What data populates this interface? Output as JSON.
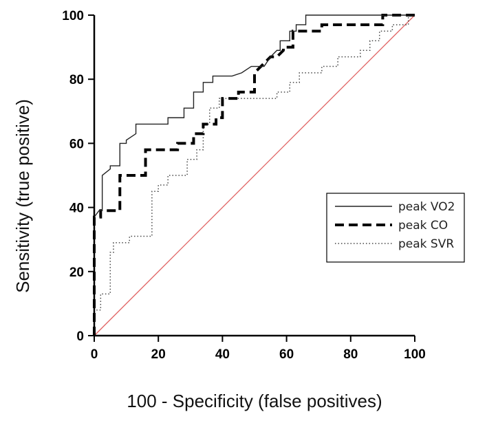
{
  "chart_data": {
    "type": "line",
    "title": "",
    "xlabel": "100 - Specificity (false positives)",
    "ylabel": "Sensitivity (true positive)",
    "xlim": [
      0,
      100
    ],
    "ylim": [
      0,
      100
    ],
    "x_ticks": [
      "0",
      "20",
      "40",
      "60",
      "80",
      "100"
    ],
    "y_ticks": [
      "0",
      "20",
      "40",
      "60",
      "80",
      "100"
    ],
    "grid": false,
    "legend_position": "right",
    "reference_line": {
      "x": [
        0,
        100
      ],
      "y": [
        0,
        100
      ],
      "color": "#e06060"
    },
    "series": [
      {
        "name": "peak VO2",
        "style": "solid",
        "color": "#222222",
        "x": [
          0,
          0,
          1.5,
          2.5,
          2.5,
          5,
          5,
          8,
          8,
          10,
          10,
          13,
          13,
          20,
          23,
          23,
          28,
          28,
          31,
          31,
          34,
          34,
          37,
          37,
          43,
          46,
          49,
          53,
          55,
          57,
          58,
          58,
          61,
          61,
          63,
          63,
          66,
          66,
          100
        ],
        "y": [
          0,
          37,
          39,
          39,
          50,
          52,
          53,
          53,
          60,
          60,
          61,
          63,
          66,
          66,
          66,
          68,
          68,
          71,
          71,
          76,
          76,
          79,
          79,
          81,
          81,
          82,
          84,
          84,
          87,
          89,
          89,
          92,
          92,
          95,
          95,
          97,
          97,
          100,
          100
        ]
      },
      {
        "name": "peak CO",
        "style": "dashed",
        "color": "#000000",
        "x": [
          0,
          0,
          2,
          2,
          8,
          8,
          16,
          16,
          26,
          26,
          31,
          31,
          34,
          34,
          38,
          38,
          40,
          40,
          45,
          45,
          50,
          50,
          52,
          55,
          57,
          59,
          59,
          62,
          62,
          66,
          66,
          71,
          71,
          90,
          90,
          92,
          92,
          100
        ],
        "y": [
          0,
          37,
          37,
          39,
          39,
          50,
          50,
          58,
          58,
          60,
          60,
          63,
          63,
          66,
          66,
          68,
          68,
          74,
          74,
          76,
          76,
          82,
          84,
          87,
          87,
          89,
          90,
          90,
          95,
          95,
          95,
          95,
          97,
          97,
          100,
          100,
          100,
          100
        ]
      },
      {
        "name": "peak SVR",
        "style": "dotted",
        "color": "#444444",
        "x": [
          0,
          0,
          2,
          2,
          5,
          5,
          6,
          6,
          11,
          11,
          18,
          18,
          20,
          20,
          23,
          23,
          29,
          29,
          32,
          32,
          34,
          34,
          36,
          36,
          39,
          39,
          57,
          57,
          61,
          61,
          64,
          64,
          71,
          71,
          76,
          76,
          83,
          83,
          86,
          86,
          89,
          89,
          93,
          93,
          98,
          98,
          100
        ],
        "y": [
          0,
          8,
          8,
          13,
          13,
          26,
          26,
          29,
          29,
          31,
          31,
          45,
          45,
          47,
          47,
          50,
          50,
          55,
          55,
          58,
          58,
          66,
          66,
          71,
          71,
          74,
          74,
          76,
          76,
          79,
          79,
          82,
          82,
          84,
          84,
          87,
          87,
          89,
          89,
          92,
          92,
          95,
          95,
          97,
          97,
          100,
          100
        ]
      }
    ]
  }
}
